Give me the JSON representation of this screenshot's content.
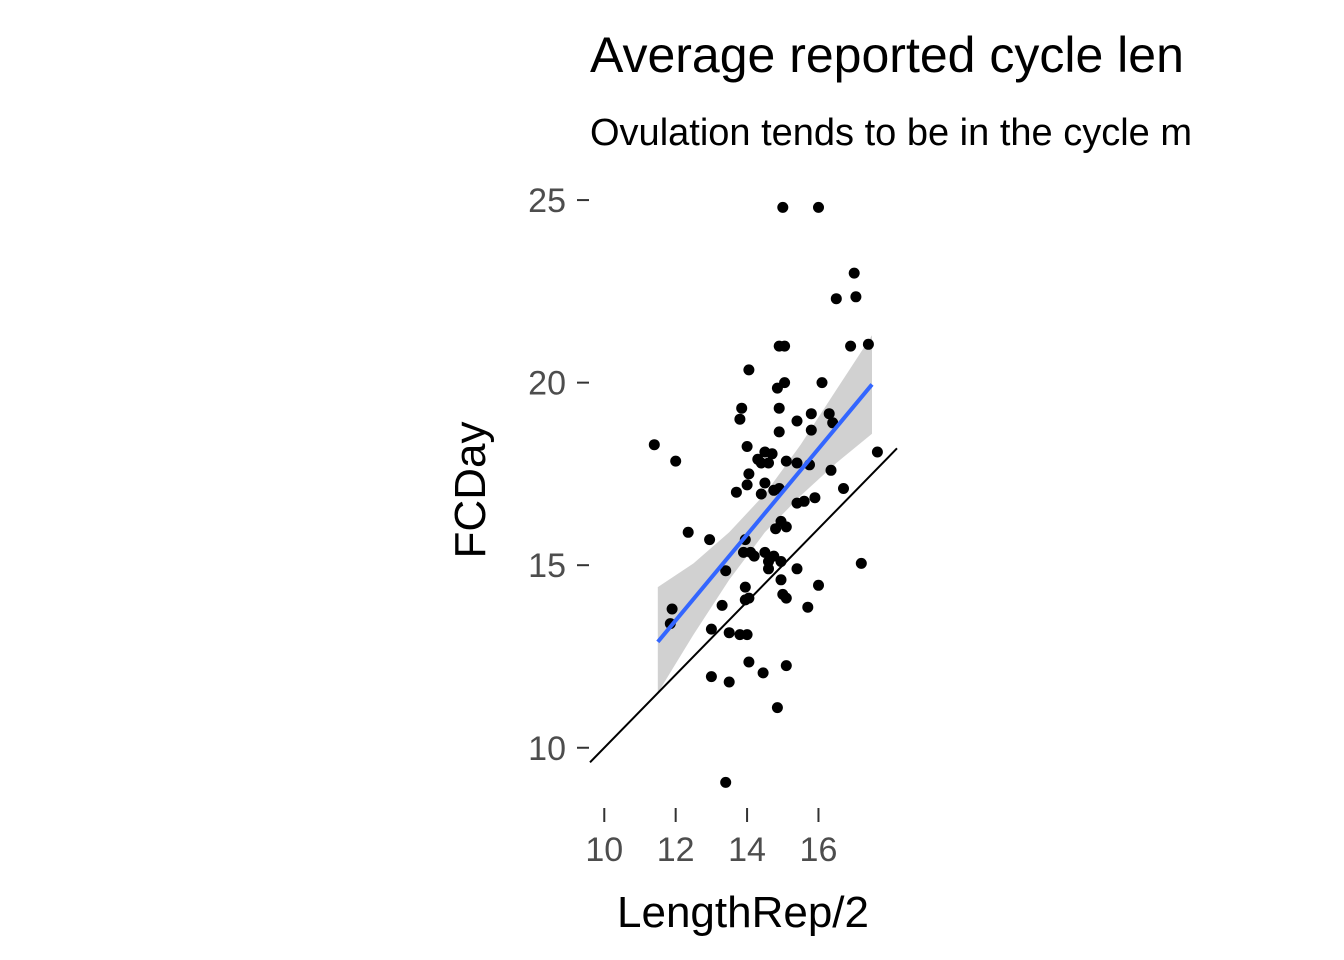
{
  "chart_data": {
    "type": "scatter",
    "title": "Average reported cycle len",
    "subtitle": "Ovulation tends to be in the cycle m",
    "xlabel": "LengthRep/2",
    "ylabel": "FCDay",
    "xlim": [
      9.6,
      18.2
    ],
    "ylim": [
      8.35,
      25.55
    ],
    "x_ticks": [
      "10",
      "12",
      "14",
      "16"
    ],
    "y_ticks": [
      "10",
      "15",
      "20",
      "25"
    ],
    "grid": false,
    "colors": {
      "points": "#000000",
      "fit_line": "#3366ff",
      "ribbon": "#cccccc",
      "reference_line": "#000000"
    },
    "reference_line": {
      "slope": 1,
      "intercept": 0
    },
    "fit": {
      "type": "linear",
      "x": [
        11.5,
        12.5,
        13.5,
        14.5,
        15.5,
        16.5,
        17.5
      ],
      "y": [
        12.9,
        14.07,
        15.25,
        16.42,
        17.6,
        18.77,
        19.95
      ],
      "ymin": [
        11.5,
        13.1,
        14.6,
        15.9,
        16.9,
        17.8,
        18.6
      ],
      "ymax": [
        14.4,
        15.05,
        15.9,
        16.95,
        18.3,
        19.8,
        21.3
      ]
    },
    "series": [
      {
        "points": [
          [
            11.4,
            18.3
          ],
          [
            12.0,
            17.85
          ],
          [
            11.9,
            13.8
          ],
          [
            11.85,
            13.4
          ],
          [
            12.35,
            15.9
          ],
          [
            12.95,
            15.7
          ],
          [
            13.0,
            13.25
          ],
          [
            13.0,
            11.95
          ],
          [
            13.3,
            13.9
          ],
          [
            13.4,
            14.85
          ],
          [
            13.4,
            9.05
          ],
          [
            13.5,
            13.15
          ],
          [
            13.5,
            11.8
          ],
          [
            13.7,
            17.0
          ],
          [
            13.8,
            19.0
          ],
          [
            13.85,
            19.3
          ],
          [
            13.8,
            13.1
          ],
          [
            13.9,
            15.35
          ],
          [
            13.95,
            15.7
          ],
          [
            13.95,
            14.4
          ],
          [
            13.95,
            14.05
          ],
          [
            14.0,
            13.1
          ],
          [
            14.0,
            18.25
          ],
          [
            14.05,
            20.35
          ],
          [
            14.05,
            17.5
          ],
          [
            14.0,
            17.2
          ],
          [
            14.05,
            14.1
          ],
          [
            14.05,
            12.35
          ],
          [
            14.1,
            15.35
          ],
          [
            14.2,
            15.25
          ],
          [
            14.3,
            17.9
          ],
          [
            14.4,
            17.8
          ],
          [
            14.4,
            16.95
          ],
          [
            14.45,
            12.05
          ],
          [
            14.5,
            17.25
          ],
          [
            14.5,
            15.35
          ],
          [
            14.5,
            18.1
          ],
          [
            14.6,
            17.8
          ],
          [
            14.6,
            15.1
          ],
          [
            14.6,
            14.9
          ],
          [
            14.7,
            18.05
          ],
          [
            14.75,
            17.05
          ],
          [
            14.75,
            15.25
          ],
          [
            14.8,
            16.0
          ],
          [
            14.85,
            11.1
          ],
          [
            14.85,
            19.85
          ],
          [
            14.9,
            21.0
          ],
          [
            14.9,
            19.3
          ],
          [
            14.9,
            18.65
          ],
          [
            14.9,
            17.1
          ],
          [
            14.95,
            16.2
          ],
          [
            14.95,
            15.1
          ],
          [
            14.95,
            14.6
          ],
          [
            15.0,
            24.8
          ],
          [
            15.0,
            14.2
          ],
          [
            15.05,
            21.0
          ],
          [
            15.05,
            20.0
          ],
          [
            15.1,
            17.85
          ],
          [
            15.1,
            16.05
          ],
          [
            15.1,
            14.1
          ],
          [
            15.1,
            12.25
          ],
          [
            15.4,
            18.95
          ],
          [
            15.4,
            17.8
          ],
          [
            15.4,
            16.7
          ],
          [
            15.4,
            14.9
          ],
          [
            15.6,
            16.75
          ],
          [
            15.7,
            13.85
          ],
          [
            15.75,
            17.75
          ],
          [
            15.8,
            19.15
          ],
          [
            15.8,
            18.7
          ],
          [
            15.9,
            16.85
          ],
          [
            16.0,
            24.8
          ],
          [
            16.1,
            20.0
          ],
          [
            16.3,
            19.15
          ],
          [
            16.35,
            17.6
          ],
          [
            16.5,
            22.3
          ],
          [
            16.7,
            17.1
          ],
          [
            16.9,
            21.0
          ],
          [
            17.0,
            23.0
          ],
          [
            17.05,
            22.35
          ],
          [
            17.2,
            15.05
          ],
          [
            17.4,
            21.05
          ],
          [
            17.65,
            18.1
          ],
          [
            16.0,
            14.45
          ],
          [
            16.4,
            18.9
          ]
        ]
      }
    ]
  }
}
